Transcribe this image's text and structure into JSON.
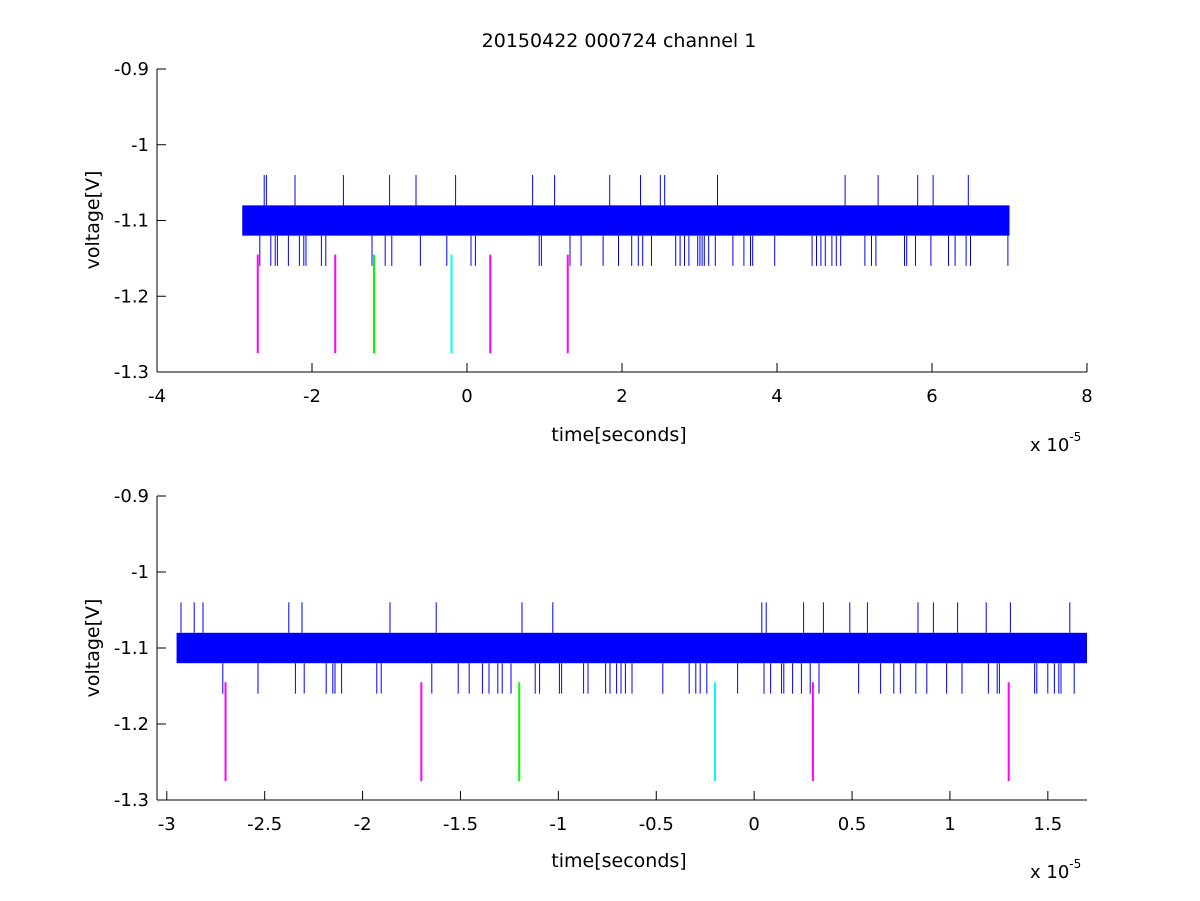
{
  "figure": {
    "title": "20150422 000724 channel 1"
  },
  "chart_data": [
    {
      "type": "line",
      "xlabel": "time[seconds]",
      "ylabel": "voltage[V]",
      "xlim": [
        -4,
        8
      ],
      "ylim": [
        -1.3,
        -0.9
      ],
      "x_exponent_base": "x 10",
      "x_exponent_power": "-5",
      "x_ticks": [
        -4,
        -2,
        0,
        2,
        4,
        6,
        8
      ],
      "x_tick_labels": [
        "-4",
        "-2",
        "0",
        "2",
        "4",
        "6",
        "8"
      ],
      "y_ticks": [
        -1.3,
        -1.2,
        -1.1,
        -1.0,
        -0.9
      ],
      "y_tick_labels": [
        "-1.3",
        "-1.2",
        "-1.1",
        "-1",
        "-0.9"
      ],
      "series": [
        {
          "kind": "signal",
          "color": "#0000ff",
          "x_range": [
            -2.9,
            7.0
          ],
          "band": [
            -1.12,
            -1.08
          ],
          "spike_high": -1.04,
          "spike_low": -1.16
        }
      ],
      "markers": [
        {
          "x": -2.7,
          "y_top": -1.145,
          "y_bottom": -1.275,
          "color": "#ff00ff"
        },
        {
          "x": -1.7,
          "y_top": -1.145,
          "y_bottom": -1.275,
          "color": "#ff00ff"
        },
        {
          "x": -1.2,
          "y_top": -1.145,
          "y_bottom": -1.275,
          "color": "#00ff00"
        },
        {
          "x": -0.2,
          "y_top": -1.145,
          "y_bottom": -1.275,
          "color": "#00ffff"
        },
        {
          "x": 0.3,
          "y_top": -1.145,
          "y_bottom": -1.275,
          "color": "#ff00ff"
        },
        {
          "x": 1.3,
          "y_top": -1.145,
          "y_bottom": -1.275,
          "color": "#ff00ff"
        }
      ]
    },
    {
      "type": "line",
      "xlabel": "time[seconds]",
      "ylabel": "voltage[V]",
      "xlim": [
        -3.05,
        1.7
      ],
      "ylim": [
        -1.3,
        -0.9
      ],
      "x_exponent_base": "x 10",
      "x_exponent_power": "-5",
      "x_ticks": [
        -3,
        -2.5,
        -2,
        -1.5,
        -1,
        -0.5,
        0,
        0.5,
        1,
        1.5
      ],
      "x_tick_labels": [
        "-3",
        "-2.5",
        "-2",
        "-1.5",
        "-1",
        "-0.5",
        "0",
        "0.5",
        "1",
        "1.5"
      ],
      "y_ticks": [
        -1.3,
        -1.2,
        -1.1,
        -1.0,
        -0.9
      ],
      "y_tick_labels": [
        "-1.3",
        "-1.2",
        "-1.1",
        "-1",
        "-0.9"
      ],
      "series": [
        {
          "kind": "signal",
          "color": "#0000ff",
          "x_range": [
            -2.95,
            1.7
          ],
          "band": [
            -1.12,
            -1.08
          ],
          "spike_high": -1.04,
          "spike_low": -1.16
        }
      ],
      "markers": [
        {
          "x": -2.7,
          "y_top": -1.145,
          "y_bottom": -1.275,
          "color": "#ff00ff"
        },
        {
          "x": -1.7,
          "y_top": -1.145,
          "y_bottom": -1.275,
          "color": "#ff00ff"
        },
        {
          "x": -1.2,
          "y_top": -1.145,
          "y_bottom": -1.275,
          "color": "#00ff00"
        },
        {
          "x": -0.2,
          "y_top": -1.145,
          "y_bottom": -1.275,
          "color": "#00ffff"
        },
        {
          "x": 0.3,
          "y_top": -1.145,
          "y_bottom": -1.275,
          "color": "#ff00ff"
        },
        {
          "x": 1.3,
          "y_top": -1.145,
          "y_bottom": -1.275,
          "color": "#ff00ff"
        }
      ]
    }
  ]
}
